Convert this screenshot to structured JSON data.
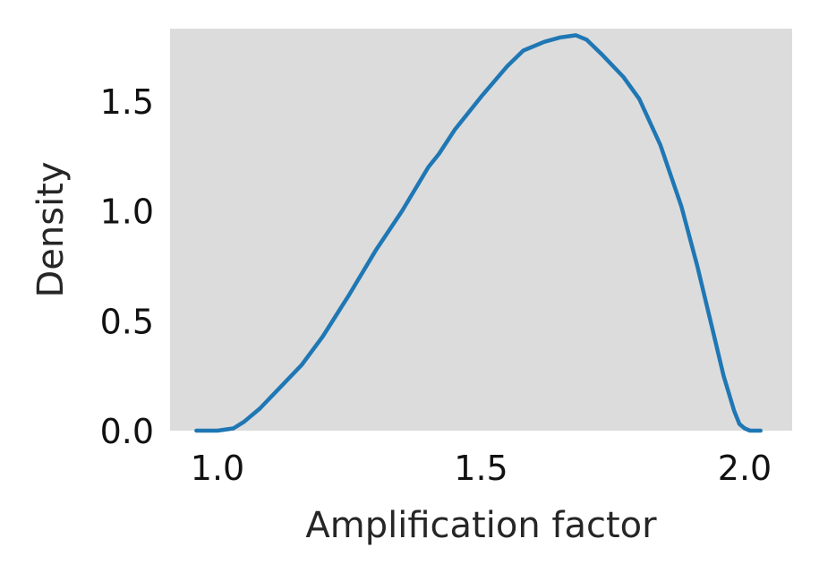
{
  "chart_data": {
    "type": "line",
    "title": "",
    "xlabel": "Amplification factor",
    "ylabel": "Density",
    "xlim": [
      0.91,
      2.09
    ],
    "ylim": [
      0,
      1.83
    ],
    "xticks": [
      1.0,
      1.5,
      2.0
    ],
    "xtick_labels": [
      "1.0",
      "1.5",
      "2.0"
    ],
    "yticks": [
      0.0,
      0.5,
      1.0,
      1.5
    ],
    "ytick_labels": [
      "0.0",
      "0.5",
      "1.0",
      "1.5"
    ],
    "grid": false,
    "legend": "none",
    "background": "#dcdcdc",
    "series": [
      {
        "color": "#1f77b4",
        "x": [
          0.96,
          1.0,
          1.03,
          1.05,
          1.08,
          1.12,
          1.16,
          1.2,
          1.25,
          1.3,
          1.35,
          1.4,
          1.42,
          1.45,
          1.5,
          1.55,
          1.58,
          1.62,
          1.65,
          1.68,
          1.7,
          1.73,
          1.77,
          1.8,
          1.84,
          1.88,
          1.91,
          1.94,
          1.96,
          1.98,
          1.99,
          2.0,
          2.01,
          2.02,
          2.03
        ],
        "y": [
          0.0,
          0.0,
          0.01,
          0.04,
          0.1,
          0.2,
          0.3,
          0.43,
          0.62,
          0.82,
          1.0,
          1.2,
          1.26,
          1.37,
          1.52,
          1.66,
          1.73,
          1.77,
          1.79,
          1.8,
          1.78,
          1.71,
          1.61,
          1.51,
          1.3,
          1.02,
          0.75,
          0.45,
          0.25,
          0.09,
          0.03,
          0.01,
          0.0,
          0.0,
          0.0
        ]
      }
    ]
  }
}
